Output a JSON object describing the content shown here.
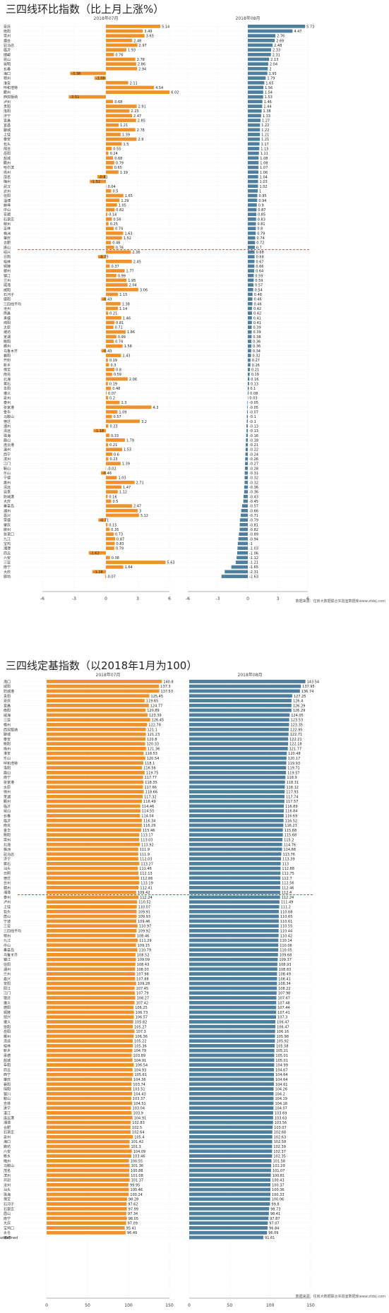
{
  "chart_data": [
    {
      "type": "bar",
      "title": "三四线环比指数（比上月上涨%）",
      "subtitle_left": "2018年07月",
      "subtitle_right": "2018年08月",
      "source": "数据来源：住房大数据联合实验室数据库www.ztdsj.com",
      "xlim_left": [
        -6,
        6
      ],
      "xlim_right": [
        -6,
        6
      ],
      "ticks_left": [
        "-6",
        "-3",
        "0",
        "3",
        "6"
      ],
      "ticks_right": [
        "-6",
        "-3",
        "0",
        "3",
        "6"
      ],
      "legend": "none",
      "colors": {
        "left": "#f0922b",
        "right": "#4f7f9e",
        "avg_line": "#c0392b"
      },
      "average_label": "三四线平均",
      "average_index": 48,
      "series": [
        {
          "name": "2018年07月",
          "cities": [
            "安庆",
            "南阳",
            "常州",
            "烟台",
            "驻马店",
            "临沂",
            "邯郸",
            "昆山",
            "昆明",
            "长春",
            "海口",
            "鄂州",
            "淮安",
            "呼和浩特",
            "衢州",
            "西双版纳",
            "泸州",
            "贵阳",
            "洛阳",
            "济宁",
            "宜昌",
            "宜昌",
            "聊城",
            "上饶",
            "泰安",
            "包头",
            "邢台",
            "岳阳",
            "盐城",
            "衢州",
            "哈尔滨",
            "扬州",
            "茂名",
            "梅州",
            "武汉",
            "达州",
            "信阳",
            "淄博",
            "蚌埠",
            "中山",
            "安顺",
            "石家庄",
            "柳州",
            "吉林",
            "株洲",
            "肇庆",
            "合肥",
            "唐山",
            "绍兴",
            "日照",
            "桂林",
            "铜陵",
            "赣州",
            "镇江",
            "兰州",
            "威海",
            "咸阳",
            "石河子",
            "德阳",
            "三四线平均",
            "沧州",
            "南昌",
            "承德",
            "绵阳",
            "太原",
            "潍坊",
            "芜湖",
            "衡阳",
            "郴州",
            "乌鲁木齐",
            "襄阳",
            "开封",
            "新乡",
            "保定",
            "南充",
            "北海",
            "黄石",
            "阜阳",
            "遵义",
            "泉州",
            "泰州",
            "张家港",
            "金华",
            "马鞍山",
            "宿迁",
            "湖州",
            "清远",
            "珠海",
            "眉山",
            "连云港",
            "温州",
            "西宁",
            "滨州",
            "江门",
            "鞍山",
            "乐山",
            "宁德",
            "惠州",
            "清远",
            "自贡",
            "防城港",
            "大庆",
            "秦皇岛",
            "湖州",
            "嘉兴",
            "常德",
            "肇庆",
            "柳州",
            "张家口",
            "九江",
            "宝鸡",
            "湘潭",
            "商丘",
            "六安",
            "三亚",
            "南宁",
            "大庆",
            "廊坊"
          ],
          "values": [
            5.14,
            3.49,
            3.65,
            2.48,
            2.97,
            1.93,
            0.76,
            2.78,
            2.86,
            2.94,
            -3.38,
            -1.08,
            2.11,
            4.54,
            6.02,
            -3.51,
            0.68,
            2.91,
            2.23,
            2.47,
            2.85,
            1.21,
            2.78,
            1.39,
            2.9,
            1.5,
            0.55,
            0.24,
            0.68,
            0.79,
            0.65,
            1.19,
            -0.81,
            -1.52,
            0.04,
            0.5,
            1.65,
            1.29,
            1.05,
            0.82,
            0.14,
            0.56,
            0.25,
            0.74,
            1.63,
            1.52,
            0.48,
            0.78,
            2.36,
            -0.75,
            2.45,
            0.37,
            1.77,
            0.99,
            1.95,
            2.04,
            3.06,
            1.15,
            -0.43,
            1.38,
            1.14,
            0.21,
            1.46,
            0.81,
            0.71,
            1.86,
            0.99,
            0.74,
            1.58,
            -0.43,
            1.43,
            0.19,
            0.3,
            0.8,
            0.59,
            2.06,
            0.19,
            0.48,
            0.07,
            0.2,
            1.3,
            4.3,
            1.09,
            0.57,
            3.2,
            0.23,
            -1.18,
            0.33,
            1.79,
            0.21,
            1.53,
            0.6,
            0.23,
            1.39,
            -0.02,
            -0.46,
            1.03,
            2.71,
            1.47,
            1.12,
            0.16,
            0.5,
            2.47,
            3.0,
            3.12,
            -0.71,
            0.15,
            0.35,
            0.73,
            0.87,
            0.83,
            0.79,
            -1.62,
            0.38,
            5.63,
            1.64,
            -1.28,
            -0.07
          ]
        },
        {
          "name": "2018年08月",
          "values": [
            5.73,
            4.47,
            2.76,
            2.69,
            2.48,
            2.33,
            2.31,
            2.13,
            2.04,
            2.0,
            1.95,
            1.79,
            1.65,
            1.56,
            1.54,
            1.53,
            1.46,
            1.44,
            1.38,
            1.33,
            1.27,
            1.22,
            1.22,
            1.21,
            1.21,
            1.17,
            1.15,
            1.11,
            1.08,
            1.08,
            1.07,
            1.06,
            1.04,
            1.03,
            1.02,
            1.0,
            0.95,
            0.94,
            0.9,
            0.87,
            0.85,
            0.83,
            0.81,
            0.8,
            0.79,
            0.74,
            0.72,
            0.7,
            0.68,
            0.68,
            0.67,
            0.66,
            0.64,
            0.59,
            0.59,
            0.57,
            0.54,
            0.48,
            0.46,
            0.46,
            0.42,
            0.42,
            0.41,
            0.41,
            0.39,
            0.39,
            0.38,
            0.36,
            0.36,
            0.34,
            0.32,
            0.27,
            0.26,
            0.21,
            0.19,
            0.16,
            0.13,
            0.1,
            0.08,
            0.03,
            -0.05,
            -0.05,
            -0.07,
            -0.1,
            -0.1,
            -0.13,
            -0.13,
            -0.16,
            -0.18,
            -0.21,
            -0.22,
            -0.24,
            -0.26,
            -0.27,
            -0.28,
            -0.31,
            -0.32,
            -0.32,
            -0.36,
            -0.36,
            -0.43,
            -0.45,
            -0.57,
            -0.66,
            -0.71,
            -0.79,
            -0.81,
            -0.82,
            -0.89,
            -0.94,
            -1.0,
            -1.03,
            -1.06,
            -1.12,
            -1.21,
            -1.65,
            -2.31,
            -2.63,
            -3.58,
            -5.63
          ]
        }
      ]
    },
    {
      "type": "bar",
      "title": "三四线定基指数（以2018年1月为100）",
      "subtitle_left": "2018年07月",
      "subtitle_right": "2018年08月",
      "source": "数据来源：住房大数据联合实验室数据库www.ztdsj.com",
      "xlim_left": [
        0,
        150
      ],
      "xlim_right": [
        0,
        150
      ],
      "ticks_left": [
        "0",
        "50",
        "100",
        "150"
      ],
      "ticks_right": [
        "0",
        "50",
        "100",
        "150"
      ],
      "legend": "none",
      "colors": {
        "left": "#f0922b",
        "right": "#4f7f9e",
        "avg_line": "#c0392b"
      },
      "average_label": "三四线平均",
      "average_index": 45,
      "series": [
        {
          "name": "2018年07月",
          "cities": [
            "海口",
            "咸阳",
            "防城港",
            "贵阳",
            "安庆",
            "宜昌",
            "南阳",
            "威海",
            "三亚",
            "梧州",
            "西双版纳",
            "聊城",
            "泰安",
            "衡阳",
            "扬州",
            "淮安",
            "乐山",
            "呼和浩特",
            "洛阳",
            "眉山",
            "南宁",
            "张家港",
            "太原",
            "徐州",
            "芜湖",
            "衢州",
            "临沂",
            "昆山",
            "长春",
            "临沂",
            "南充",
            "金华",
            "衡阳",
            "常州",
            "北海",
            "株洲",
            "驻马店",
            "济宁",
            "黄石",
            "汕头",
            "日照",
            "宿迁",
            "台州",
            "赣州",
            "湘潭",
            "泰州",
            "泸州",
            "上饶",
            "包头",
            "唐山",
            "宁波",
            "三亚",
            "三四线平均",
            "鄂州",
            "九江",
            "中山",
            "秦皇岛",
            "乌鲁木齐",
            "镇江",
            "信阳",
            "湖州",
            "兰州",
            "嘉兴",
            "安阳",
            "阳江",
            "江门",
            "宿迁",
            "遵义",
            "德阳",
            "铜陵",
            "绍兴",
            "遵义",
            "信阳",
            "岳阳",
            "郴州",
            "清远",
            "桂林",
            "新乡",
            "承德",
            "盐城",
            "阜阳",
            "商丘",
            "西宁",
            "肇庆",
            "襄阳",
            "绵阳",
            "银川",
            "鞍山",
            "吉林",
            "遂宁",
            "湛江",
            "连云港",
            "湘潭",
            "合肥",
            "石家庄",
            "泉州",
            "海口",
            "廊坊",
            "六安",
            "衡水",
            "梅州",
            "马鞍山",
            "茂名",
            "滨州",
            "开封",
            "沧州",
            "汕头",
            "珠海",
            "保定",
            "石河子",
            "石家庄",
            "眉山",
            "南宁",
            "大庆",
            "宝鸡口",
            "太仓",
            "廊坊"
          ],
          "values": [
            140.8,
            137.3,
            137.53,
            125.45,
            119.65,
            124.77,
            120.89,
            123.39,
            126.45,
            122.78,
            121.1,
            121.23,
            120.8,
            120.33,
            121.36,
            118.53,
            120.54,
            118.1,
            116.56,
            119.75,
            117.77,
            118.35,
            117.66,
            118.66,
            117.32,
            116.49,
            114.46,
            114.55,
            114.04,
            116.34,
            116.29,
            115.46,
            113.17,
            113.03,
            113.92,
            111.9,
            111.9,
            112.03,
            113.27,
            111.46,
            112.13,
            112.86,
            113.19,
            112.41,
            109.42,
            112.24,
            110.52,
            110.07,
            109.91,
            109.93,
            109.46,
            110.97,
            109.92,
            108.46,
            111.29,
            109.15,
            110.79,
            108.52,
            109.09,
            108.43,
            108.03,
            107.98,
            107.88,
            109.28,
            107.45,
            107.79,
            108.27,
            107.42,
            106.25,
            106.73,
            106.57,
            105.82,
            105.27,
            107.3,
            106.36,
            105.22,
            105.36,
            104.79,
            103.89,
            104.91,
            106.54,
            104.93,
            105.61,
            104.36,
            103.74,
            103.51,
            104.43,
            103.37,
            104.51,
            103.04,
            103.9,
            104.91,
            102.83,
            102.5,
            102.64,
            105.4,
            101.42,
            101.3,
            104.09,
            103.46,
            100.55,
            101.36,
            100.88,
            101.08,
            101.37,
            99.95,
            100.46,
            100.24,
            98.28,
            97.62,
            97.99,
            97.34,
            98.05,
            97.09,
            95.41,
            96.49
          ]
        },
        {
          "name": "2018年08月",
          "values": [
            143.54,
            137.95,
            136.74,
            127.25,
            126.4,
            126.29,
            126.29,
            124.05,
            123.53,
            123.35,
            122.95,
            122.71,
            122.21,
            122.18,
            121.77,
            120.48,
            120.17,
            119.93,
            119.71,
            119.57,
            118.9,
            118.31,
            118.12,
            117.93,
            117.74,
            117.57,
            116.89,
            116.84,
            116.69,
            116.52,
            116.23,
            115.68,
            115.68,
            115.2,
            114.76,
            114.68,
            113.76,
            113.39,
            113.0,
            112.88,
            112.75,
            112.7,
            112.56,
            112.46,
            112.4,
            112.24,
            111.49,
            111.2,
            110.68,
            110.65,
            110.61,
            110.55,
            110.44,
            110.42,
            110.14,
            110.06,
            110.05,
            109.68,
            109.37,
            108.93,
            108.83,
            108.49,
            108.41,
            108.34,
            108.22,
            107.98,
            107.67,
            107.48,
            107.44,
            107.41,
            107.3,
            106.47,
            106.47,
            106.16,
            105.98,
            105.92,
            105.58,
            105.21,
            105.01,
            105.01,
            104.99,
            104.67,
            104.64,
            104.64,
            104.61,
            104.26,
            104.2,
            104.19,
            104.18,
            104.07,
            103.69,
            103.63,
            103.56,
            103.07,
            102.68,
            102.63,
            102.58,
            102.39,
            102.37,
            102.35,
            101.58,
            101.29,
            101.07,
            100.81,
            100.43,
            100.37,
            100.36,
            100.33,
            100.06,
            99.8,
            98.73,
            98.41,
            97.87,
            97.07,
            96.84,
            96.09,
            91.61,
            91.1
          ]
        }
      ]
    }
  ]
}
